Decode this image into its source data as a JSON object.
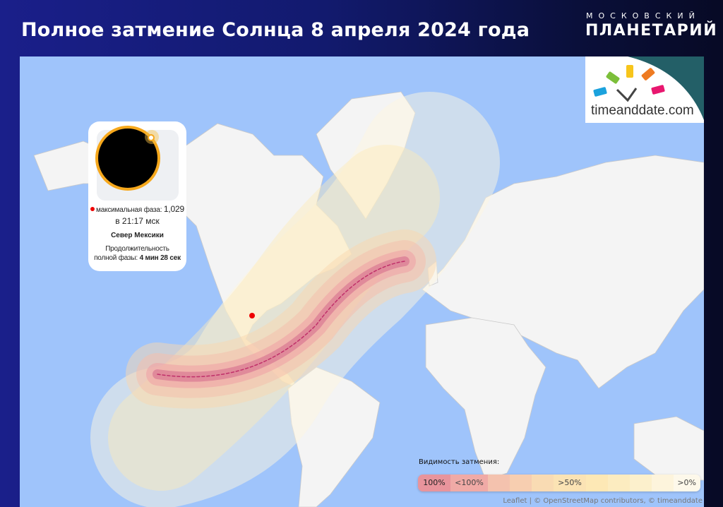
{
  "header": {
    "title": "Полное затмение Солнца 8 апреля 2024 года",
    "brand_top": "МОСКОВСКИЙ",
    "brand_main": "ПЛАНЕТАРИЙ"
  },
  "logo": {
    "text": "timeanddate.com"
  },
  "info_card": {
    "max_phase_label": "максимальная фаза:",
    "max_phase_value": "1,029",
    "time": "в 21:17 мск",
    "location": "Север Мексики",
    "duration_label_1": "Продолжительность",
    "duration_label_2": "полной фазы:",
    "duration_value": "4 мин 28 сек"
  },
  "legend": {
    "title": "Видимость затмения:",
    "labels": [
      "100%",
      "<100%",
      ">50%",
      ">0%"
    ],
    "colors": [
      "#e8949c",
      "#f0aaa6",
      "#f4c2ae",
      "#f7ceb0",
      "#f9dbb3",
      "#fbe3b4",
      "#fde8b5",
      "#fcecc0",
      "#fcf0cc",
      "#fdf4dc",
      "#fdf8ea"
    ]
  },
  "attribution": "Leaflet | © OpenStreetMap contributors, © timeanddate",
  "colors": {
    "ocean": "#9fc4fb",
    "land": "#f3f3f3",
    "path_line": "#c0306a"
  }
}
